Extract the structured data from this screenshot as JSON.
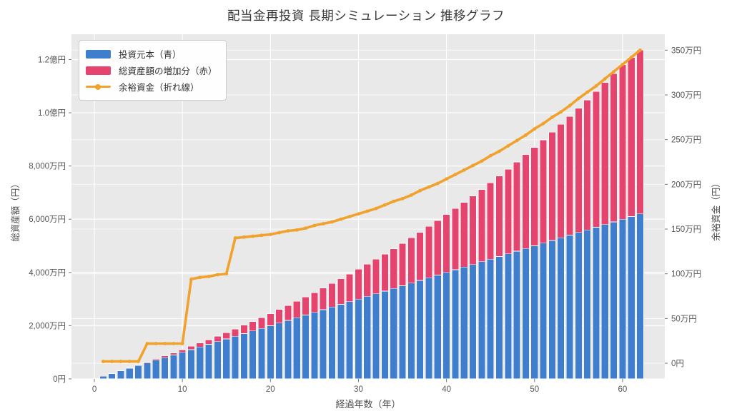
{
  "chart_data": {
    "type": "bar",
    "title": "配当金再投資 長期シミュレーション 推移グラフ",
    "xlabel": "経過年数（年）",
    "ylabel_left": "総資産額（円）",
    "ylabel_right": "余裕資金（円）",
    "value_unit": "万円",
    "grid": true,
    "legend_position": "upper left",
    "background_color": "#E9E9E9",
    "grid_color": "#FFFFFF",
    "tick_text_color": "#555555",
    "x": [
      1,
      2,
      3,
      4,
      5,
      6,
      7,
      8,
      9,
      10,
      11,
      12,
      13,
      14,
      15,
      16,
      17,
      18,
      19,
      20,
      21,
      22,
      23,
      24,
      25,
      26,
      27,
      28,
      29,
      30,
      31,
      32,
      33,
      34,
      35,
      36,
      37,
      38,
      39,
      40,
      41,
      42,
      43,
      44,
      45,
      46,
      47,
      48,
      49,
      50,
      51,
      52,
      53,
      54,
      55,
      56,
      57,
      58,
      59,
      60,
      61,
      62
    ],
    "series": [
      {
        "name": "投資元本（青）",
        "type": "bar",
        "stacked": true,
        "yaxis": "left",
        "color": "#3E7ECD",
        "values": [
          100,
          200,
          300,
          400,
          500,
          600,
          700,
          800,
          900,
          1000,
          1100,
          1200,
          1300,
          1400,
          1500,
          1600,
          1700,
          1800,
          1900,
          2000,
          2100,
          2200,
          2300,
          2400,
          2500,
          2600,
          2700,
          2800,
          2900,
          3000,
          3100,
          3200,
          3300,
          3400,
          3500,
          3600,
          3700,
          3800,
          3900,
          4000,
          4100,
          4200,
          4300,
          4400,
          4500,
          4600,
          4700,
          4800,
          4900,
          5000,
          5100,
          5200,
          5300,
          5400,
          5500,
          5600,
          5700,
          5800,
          5900,
          6000,
          6100,
          6200
        ]
      },
      {
        "name": "総資産額の増加分（赤）",
        "type": "bar",
        "stacked": true,
        "yaxis": "left",
        "color": "#E5446F",
        "values": [
          0,
          2,
          6,
          13,
          21,
          32,
          46,
          61,
          79,
          100,
          123,
          149,
          177,
          208,
          242,
          279,
          318,
          360,
          406,
          454,
          506,
          560,
          618,
          680,
          744,
          812,
          884,
          959,
          1038,
          1121,
          1208,
          1298,
          1392,
          1491,
          1594,
          1701,
          1812,
          1928,
          2048,
          2173,
          2303,
          2437,
          2576,
          2721,
          2870,
          3025,
          3185,
          3351,
          3522,
          3699,
          3882,
          4070,
          4265,
          4466,
          4673,
          4886,
          5107,
          5334,
          5567,
          5808,
          5980,
          6160
        ]
      },
      {
        "name": "余裕資金（折れ線）",
        "type": "line",
        "yaxis": "right",
        "color": "#F0A22C",
        "values": [
          2,
          2,
          2,
          2,
          2,
          22,
          22,
          22,
          22,
          22,
          94,
          96,
          97,
          99,
          100,
          140,
          141,
          142,
          143,
          144,
          146,
          148,
          149,
          151,
          154,
          156,
          158,
          161,
          164,
          167,
          170,
          173,
          177,
          181,
          184,
          188,
          193,
          197,
          201,
          206,
          211,
          216,
          221,
          226,
          232,
          237,
          243,
          249,
          255,
          262,
          268,
          275,
          281,
          288,
          296,
          303,
          310,
          318,
          326,
          334,
          342,
          350
        ]
      }
    ],
    "x_ticks": [
      {
        "value": 0,
        "label": "0"
      },
      {
        "value": 10,
        "label": "10"
      },
      {
        "value": 20,
        "label": "20"
      },
      {
        "value": 30,
        "label": "30"
      },
      {
        "value": 40,
        "label": "40"
      },
      {
        "value": 50,
        "label": "50"
      },
      {
        "value": 60,
        "label": "60"
      }
    ],
    "left_ticks": [
      {
        "value": 0,
        "label": "0円"
      },
      {
        "value": 2000,
        "label": "2,000万円"
      },
      {
        "value": 4000,
        "label": "4,000万円"
      },
      {
        "value": 6000,
        "label": "6,000万円"
      },
      {
        "value": 8000,
        "label": "8,000万円"
      },
      {
        "value": 10000,
        "label": "1.0億円"
      },
      {
        "value": 12000,
        "label": "1.2億円"
      }
    ],
    "right_ticks": [
      {
        "value": 0,
        "label": "0円"
      },
      {
        "value": 50,
        "label": "50万円"
      },
      {
        "value": 100,
        "label": "100万円"
      },
      {
        "value": 150,
        "label": "150万円"
      },
      {
        "value": 200,
        "label": "200万円"
      },
      {
        "value": 250,
        "label": "250万円"
      },
      {
        "value": 300,
        "label": "300万円"
      },
      {
        "value": 350,
        "label": "350万円"
      }
    ],
    "xlim": [
      -2.6,
      64.8
    ],
    "ylim_left": [
      0,
      12950
    ],
    "ylim_right": [
      -17.5,
      367.8
    ]
  }
}
